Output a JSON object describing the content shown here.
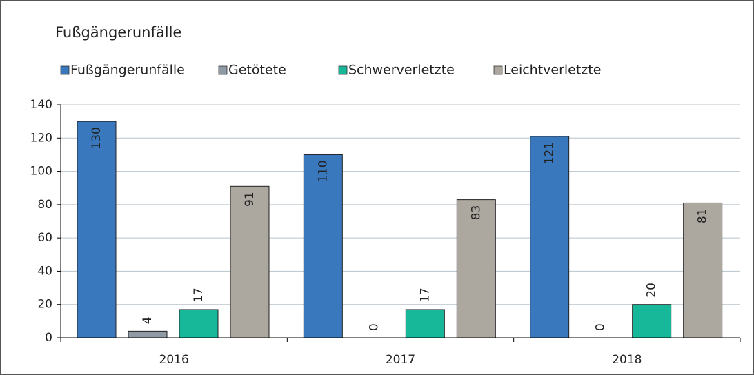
{
  "chart_data": {
    "type": "bar",
    "title": "Fußgängerunfälle",
    "categories": [
      "2016",
      "2017",
      "2018"
    ],
    "series": [
      {
        "name": "Fußgängerunfälle",
        "color": "#3a78bd",
        "values": [
          130,
          110,
          121
        ],
        "label_position": "inside",
        "label_color": "#ffffff"
      },
      {
        "name": "Getötete",
        "color": "#8f9aa5",
        "values": [
          4,
          0,
          0
        ],
        "label_position": "outside",
        "label_color": "#222222"
      },
      {
        "name": "Schwerverletzte",
        "color": "#17b79a",
        "values": [
          17,
          17,
          20
        ],
        "label_position": "outside",
        "label_color": "#222222"
      },
      {
        "name": "Leichtverletzte",
        "color": "#aca79f",
        "values": [
          91,
          83,
          81
        ],
        "label_position": "inside",
        "label_color": "#222222"
      }
    ],
    "ylim": [
      0,
      140
    ],
    "yticks": [
      0,
      20,
      40,
      60,
      80,
      100,
      120,
      140
    ],
    "grid": true,
    "legend": "top"
  }
}
